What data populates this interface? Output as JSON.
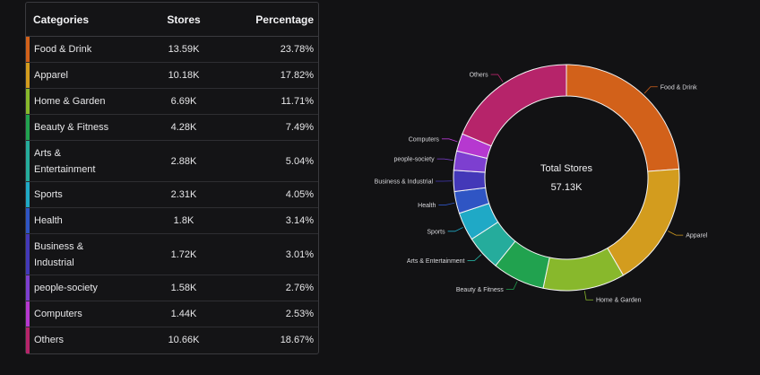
{
  "table": {
    "headers": {
      "category": "Categories",
      "stores": "Stores",
      "percentage": "Percentage"
    },
    "rows": [
      {
        "category": "Food & Drink",
        "stores": "13.59K",
        "percentage": "23.78%",
        "color": "#d2611a"
      },
      {
        "category": "Apparel",
        "stores": "10.18K",
        "percentage": "17.82%",
        "color": "#d39c1e"
      },
      {
        "category": "Home & Garden",
        "stores": "6.69K",
        "percentage": "11.71%",
        "color": "#88b82c"
      },
      {
        "category": "Beauty & Fitness",
        "stores": "4.28K",
        "percentage": "7.49%",
        "color": "#21a24f"
      },
      {
        "category": "Arts & Entertainment",
        "stores": "2.88K",
        "percentage": "5.04%",
        "color": "#25ac9c"
      },
      {
        "category": "Sports",
        "stores": "2.31K",
        "percentage": "4.05%",
        "color": "#1fa9c6"
      },
      {
        "category": "Health",
        "stores": "1.8K",
        "percentage": "3.14%",
        "color": "#2f55c4"
      },
      {
        "category": "Business & Industrial",
        "stores": "1.72K",
        "percentage": "3.01%",
        "color": "#4338b8"
      },
      {
        "category": "people-society",
        "stores": "1.58K",
        "percentage": "2.76%",
        "color": "#7d3fd0"
      },
      {
        "category": "Computers",
        "stores": "1.44K",
        "percentage": "2.53%",
        "color": "#b638d0"
      },
      {
        "category": "Others",
        "stores": "10.66K",
        "percentage": "18.67%",
        "color": "#b6246a"
      }
    ]
  },
  "center": {
    "title": "Total Stores",
    "value": "57.13K"
  },
  "chart_data": {
    "type": "pie",
    "style": "donut",
    "categories": [
      "Food & Drink",
      "Apparel",
      "Home & Garden",
      "Beauty & Fitness",
      "Arts & Entertainment",
      "Sports",
      "Health",
      "Business & Industrial",
      "people-society",
      "Computers",
      "Others"
    ],
    "values": [
      23.78,
      17.82,
      11.71,
      7.49,
      5.04,
      4.05,
      3.14,
      3.01,
      2.76,
      2.53,
      18.67
    ],
    "colors": [
      "#d2611a",
      "#d39c1e",
      "#88b82c",
      "#21a24f",
      "#25ac9c",
      "#1fa9c6",
      "#2f55c4",
      "#4338b8",
      "#7d3fd0",
      "#b638d0",
      "#b6246a"
    ]
  }
}
